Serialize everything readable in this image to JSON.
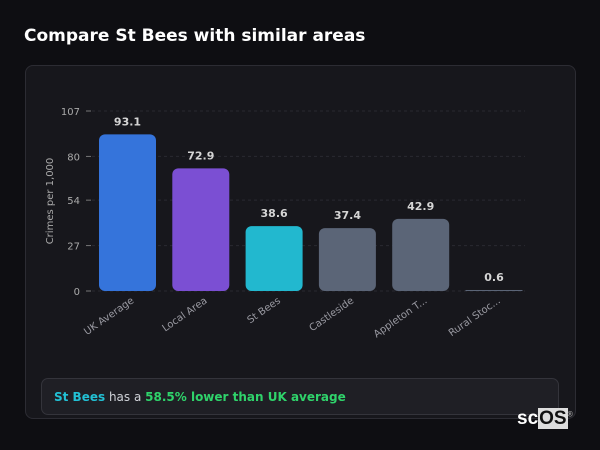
{
  "header": {
    "title": "Compare St Bees with similar areas"
  },
  "chart_data": {
    "type": "bar",
    "ylabel": "Crimes per 1,000",
    "xlabel": "",
    "ylim": [
      0,
      107
    ],
    "yticks": [
      0,
      27,
      54,
      80,
      107
    ],
    "grid": true,
    "categories": [
      "UK Average",
      "Local Area",
      "St Bees",
      "Castleside",
      "Appleton T...",
      "Rural Stoc..."
    ],
    "values": [
      93.1,
      72.9,
      38.6,
      37.4,
      42.9,
      0.6
    ],
    "value_labels": [
      "93.1",
      "72.9",
      "38.6",
      "37.4",
      "42.9",
      "0.6"
    ],
    "colors": [
      "#3574db",
      "#7b4fd3",
      "#22b8cf",
      "#5b6577",
      "#5b6577",
      "#5b6577"
    ]
  },
  "summary": {
    "place": "St Bees",
    "middle": " has a ",
    "highlight": "58.5% lower than UK average"
  },
  "watermark": "scOS"
}
